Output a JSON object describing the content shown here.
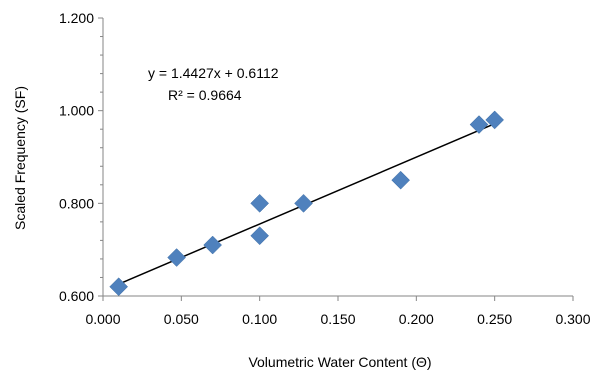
{
  "chart_data": {
    "type": "scatter",
    "xlabel": "Volumetric Water Content  (Θ)",
    "ylabel": "Scaled Frequency (SF)",
    "xlim": [
      0,
      0.3
    ],
    "ylim": [
      0.6,
      1.2
    ],
    "x_ticks": [
      "0.000",
      "0.050",
      "0.100",
      "0.150",
      "0.200",
      "0.250",
      "0.300"
    ],
    "y_ticks": [
      "0.600",
      "0.800",
      "1.000",
      "1.200"
    ],
    "x_tick_values": [
      0,
      0.05,
      0.1,
      0.15,
      0.2,
      0.25,
      0.3
    ],
    "y_tick_values": [
      0.6,
      0.8,
      1.0,
      1.2
    ],
    "grid": false,
    "series": [
      {
        "marker": "diamond",
        "color": "#4F81BD",
        "points": [
          {
            "x": 0.01,
            "y": 0.62
          },
          {
            "x": 0.047,
            "y": 0.683
          },
          {
            "x": 0.07,
            "y": 0.71
          },
          {
            "x": 0.1,
            "y": 0.8
          },
          {
            "x": 0.1,
            "y": 0.73
          },
          {
            "x": 0.128,
            "y": 0.8
          },
          {
            "x": 0.19,
            "y": 0.85
          },
          {
            "x": 0.24,
            "y": 0.97
          },
          {
            "x": 0.25,
            "y": 0.98
          }
        ]
      }
    ],
    "trendline": {
      "type": "linear",
      "slope": 1.4427,
      "intercept": 0.6112,
      "x_range": [
        0.01,
        0.25
      ],
      "color": "#000000"
    },
    "annotations": {
      "equation": "y = 1.4427x + 0.6112",
      "r2": "R² = 0.9664"
    }
  }
}
